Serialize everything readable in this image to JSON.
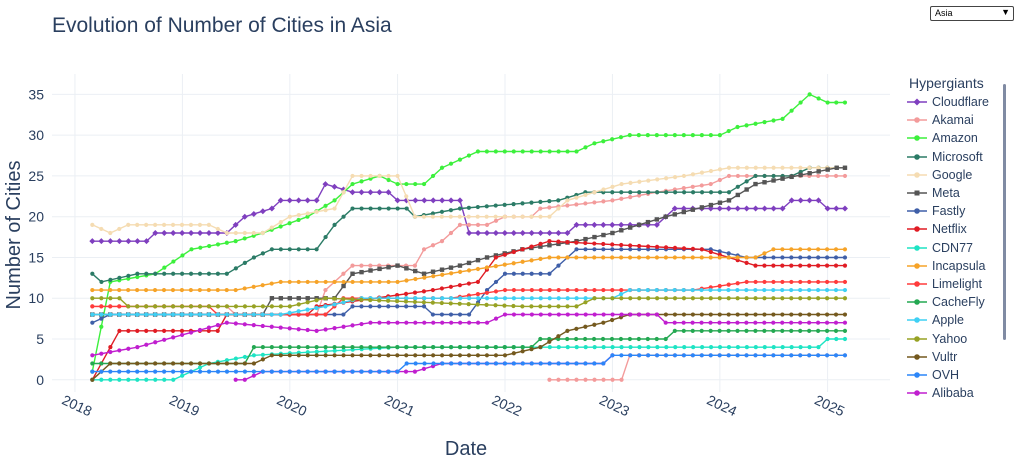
{
  "title": "Evolution of Number of Cities in Asia",
  "dropdown": {
    "selected": "Asia",
    "icon": "triangle-down-icon"
  },
  "legend_title": "Hypergiants",
  "chart_data": {
    "type": "line",
    "title": "Evolution of Number of Cities in Asia",
    "xlabel": "Date",
    "ylabel": "Number of Cities",
    "x_type": "date",
    "xlim": [
      "2017-10-15",
      "2025-08-01"
    ],
    "ylim": [
      -1.5,
      37.5
    ],
    "x_ticks": [
      "2018-01-01",
      "2019-01-01",
      "2020-01-01",
      "2021-01-01",
      "2022-01-01",
      "2023-01-01",
      "2024-01-01",
      "2025-01-01"
    ],
    "x_tick_labels": [
      "2018",
      "2019",
      "2020",
      "2021",
      "2022",
      "2023",
      "2024",
      "2025"
    ],
    "y_ticks": [
      0,
      5,
      10,
      15,
      20,
      25,
      30,
      35
    ],
    "grid": true,
    "legend_position": "right",
    "series": [
      {
        "name": "Cloudflare",
        "color": "#7f3fbf",
        "symbol": "diamond",
        "points": [
          [
            "2018-03-01",
            17
          ],
          [
            "2018-09-01",
            17
          ],
          [
            "2018-10-01",
            18
          ],
          [
            "2019-06-01",
            18
          ],
          [
            "2019-07-01",
            19
          ],
          [
            "2019-08-01",
            20
          ],
          [
            "2019-11-01",
            21
          ],
          [
            "2019-12-01",
            22
          ],
          [
            "2020-04-01",
            22
          ],
          [
            "2020-05-01",
            24
          ],
          [
            "2020-08-01",
            23
          ],
          [
            "2020-12-01",
            23
          ],
          [
            "2021-01-01",
            22
          ],
          [
            "2021-08-01",
            22
          ],
          [
            "2021-09-01",
            18
          ],
          [
            "2022-08-01",
            18
          ],
          [
            "2022-09-01",
            19
          ],
          [
            "2023-06-01",
            19
          ],
          [
            "2023-07-01",
            20
          ],
          [
            "2023-08-01",
            21
          ],
          [
            "2024-08-01",
            21
          ],
          [
            "2024-09-01",
            22
          ],
          [
            "2024-12-01",
            22
          ],
          [
            "2025-01-01",
            21
          ],
          [
            "2025-03-01",
            21
          ]
        ]
      },
      {
        "name": "Akamai",
        "color": "#f39b9b",
        "symbol": "circle",
        "points": [
          [
            "2018-03-01",
            9
          ],
          [
            "2019-06-01",
            9
          ],
          [
            "2019-07-01",
            8
          ],
          [
            "2020-04-01",
            8
          ],
          [
            "2020-05-01",
            11
          ],
          [
            "2020-07-01",
            13
          ],
          [
            "2020-08-01",
            14
          ],
          [
            "2021-03-01",
            14
          ],
          [
            "2021-04-01",
            16
          ],
          [
            "2021-06-01",
            17
          ],
          [
            "2021-08-01",
            19
          ],
          [
            "2021-11-01",
            19
          ],
          [
            "2022-01-01",
            20
          ],
          [
            "2022-04-01",
            20
          ],
          [
            "2022-05-01",
            21
          ],
          [
            "2023-01-01",
            22
          ],
          [
            "2023-06-01",
            23
          ],
          [
            "2023-12-01",
            24
          ],
          [
            "2024-02-01",
            25
          ],
          [
            "2025-03-01",
            25
          ]
        ]
      },
      {
        "name": "Amazon",
        "color": "#3cf03c",
        "symbol": "circle",
        "points": [
          [
            "2018-03-01",
            1
          ],
          [
            "2018-05-01",
            12
          ],
          [
            "2018-10-01",
            13
          ],
          [
            "2019-02-01",
            16
          ],
          [
            "2019-07-01",
            17
          ],
          [
            "2019-10-01",
            18
          ],
          [
            "2020-03-01",
            20
          ],
          [
            "2020-06-01",
            22
          ],
          [
            "2020-08-01",
            24
          ],
          [
            "2020-11-01",
            25
          ],
          [
            "2021-01-01",
            24
          ],
          [
            "2021-04-01",
            24
          ],
          [
            "2021-06-01",
            26
          ],
          [
            "2021-08-01",
            27
          ],
          [
            "2021-10-01",
            28
          ],
          [
            "2022-09-01",
            28
          ],
          [
            "2022-11-01",
            29
          ],
          [
            "2023-03-01",
            30
          ],
          [
            "2024-01-01",
            30
          ],
          [
            "2024-03-01",
            31
          ],
          [
            "2024-08-01",
            32
          ],
          [
            "2024-11-01",
            35
          ],
          [
            "2025-01-01",
            34
          ],
          [
            "2025-03-01",
            34
          ]
        ]
      },
      {
        "name": "Microsoft",
        "color": "#2b7b66",
        "symbol": "circle",
        "points": [
          [
            "2018-03-01",
            13
          ],
          [
            "2018-04-01",
            12
          ],
          [
            "2018-08-01",
            13
          ],
          [
            "2019-06-01",
            13
          ],
          [
            "2019-09-01",
            15
          ],
          [
            "2019-11-01",
            16
          ],
          [
            "2020-04-01",
            16
          ],
          [
            "2020-06-01",
            19
          ],
          [
            "2020-08-01",
            21
          ],
          [
            "2021-02-01",
            21
          ],
          [
            "2021-03-01",
            20
          ],
          [
            "2021-08-01",
            21
          ],
          [
            "2022-07-01",
            22
          ],
          [
            "2022-10-01",
            23
          ],
          [
            "2024-02-01",
            23
          ],
          [
            "2024-05-01",
            25
          ],
          [
            "2024-09-01",
            25
          ],
          [
            "2024-11-01",
            26
          ],
          [
            "2025-03-01",
            26
          ]
        ]
      },
      {
        "name": "Google",
        "color": "#f5dcb2",
        "symbol": "circle",
        "points": [
          [
            "2018-03-01",
            19
          ],
          [
            "2018-05-01",
            18
          ],
          [
            "2018-07-01",
            19
          ],
          [
            "2019-04-01",
            19
          ],
          [
            "2019-06-01",
            18
          ],
          [
            "2019-10-01",
            18
          ],
          [
            "2020-01-01",
            20
          ],
          [
            "2020-06-01",
            21
          ],
          [
            "2020-08-01",
            25
          ],
          [
            "2021-01-01",
            25
          ],
          [
            "2021-03-01",
            20
          ],
          [
            "2022-04-01",
            20
          ],
          [
            "2022-06-01",
            20
          ],
          [
            "2022-08-01",
            22
          ],
          [
            "2023-02-01",
            24
          ],
          [
            "2023-09-01",
            25
          ],
          [
            "2024-02-01",
            26
          ],
          [
            "2025-03-01",
            26
          ]
        ]
      },
      {
        "name": "Meta",
        "color": "#555555",
        "symbol": "square",
        "points": [
          [
            "2018-03-01",
            8
          ],
          [
            "2019-10-01",
            8
          ],
          [
            "2019-11-01",
            10
          ],
          [
            "2020-06-01",
            10
          ],
          [
            "2020-08-01",
            13
          ],
          [
            "2021-01-01",
            14
          ],
          [
            "2021-04-01",
            13
          ],
          [
            "2021-08-01",
            14
          ],
          [
            "2021-11-01",
            15
          ],
          [
            "2022-03-01",
            16
          ],
          [
            "2022-09-01",
            17
          ],
          [
            "2023-01-01",
            18
          ],
          [
            "2023-07-01",
            20
          ],
          [
            "2024-02-01",
            22
          ],
          [
            "2024-05-01",
            24
          ],
          [
            "2025-02-01",
            26
          ],
          [
            "2025-03-01",
            26
          ]
        ]
      },
      {
        "name": "Fastly",
        "color": "#3f5fa8",
        "symbol": "circle",
        "points": [
          [
            "2018-03-01",
            7
          ],
          [
            "2018-05-01",
            8
          ],
          [
            "2020-07-01",
            8
          ],
          [
            "2020-08-01",
            9
          ],
          [
            "2021-04-01",
            9
          ],
          [
            "2021-05-01",
            8
          ],
          [
            "2021-09-01",
            8
          ],
          [
            "2021-11-01",
            11
          ],
          [
            "2022-01-01",
            13
          ],
          [
            "2022-06-01",
            13
          ],
          [
            "2022-09-01",
            16
          ],
          [
            "2023-12-01",
            16
          ],
          [
            "2024-04-01",
            15
          ],
          [
            "2025-03-01",
            15
          ]
        ]
      },
      {
        "name": "Netflix",
        "color": "#e01c24",
        "symbol": "circle",
        "points": [
          [
            "2018-03-01",
            0
          ],
          [
            "2018-06-01",
            6
          ],
          [
            "2019-05-01",
            6
          ],
          [
            "2019-06-01",
            8
          ],
          [
            "2020-03-01",
            8
          ],
          [
            "2020-04-01",
            9
          ],
          [
            "2021-05-01",
            11
          ],
          [
            "2021-10-01",
            12
          ],
          [
            "2021-12-01",
            15
          ],
          [
            "2022-06-01",
            17
          ],
          [
            "2023-11-01",
            16
          ],
          [
            "2024-05-01",
            14
          ],
          [
            "2025-03-01",
            14
          ]
        ]
      },
      {
        "name": "CDN77",
        "color": "#1ee4c4",
        "symbol": "circle",
        "points": [
          [
            "2018-03-01",
            0
          ],
          [
            "2018-12-01",
            0
          ],
          [
            "2019-04-01",
            2
          ],
          [
            "2019-09-01",
            3
          ],
          [
            "2021-01-01",
            4
          ],
          [
            "2022-01-01",
            4
          ],
          [
            "2023-02-01",
            4
          ],
          [
            "2024-12-01",
            4
          ],
          [
            "2025-01-01",
            5
          ],
          [
            "2025-03-01",
            5
          ]
        ]
      },
      {
        "name": "Incapsula",
        "color": "#f6a328",
        "symbol": "circle",
        "points": [
          [
            "2018-03-01",
            11
          ],
          [
            "2019-07-01",
            11
          ],
          [
            "2019-12-01",
            12
          ],
          [
            "2021-01-01",
            12
          ],
          [
            "2022-06-01",
            15
          ],
          [
            "2024-05-01",
            15
          ],
          [
            "2024-07-01",
            16
          ],
          [
            "2025-03-01",
            16
          ]
        ]
      },
      {
        "name": "Limelight",
        "color": "#ff3b3b",
        "symbol": "circle",
        "points": [
          [
            "2018-03-01",
            9
          ],
          [
            "2019-04-01",
            9
          ],
          [
            "2019-05-01",
            8
          ],
          [
            "2020-05-01",
            8
          ],
          [
            "2020-07-01",
            10
          ],
          [
            "2021-07-01",
            10
          ],
          [
            "2022-01-01",
            11
          ],
          [
            "2023-10-01",
            11
          ],
          [
            "2024-04-01",
            12
          ],
          [
            "2025-03-01",
            12
          ]
        ]
      },
      {
        "name": "CacheFly",
        "color": "#24a852",
        "symbol": "circle",
        "points": [
          [
            "2018-03-01",
            2
          ],
          [
            "2019-08-01",
            2
          ],
          [
            "2019-09-01",
            4
          ],
          [
            "2021-06-01",
            4
          ],
          [
            "2022-04-01",
            4
          ],
          [
            "2022-05-01",
            5
          ],
          [
            "2023-07-01",
            5
          ],
          [
            "2023-08-01",
            6
          ],
          [
            "2025-03-01",
            6
          ]
        ]
      },
      {
        "name": "Apple",
        "color": "#3fd0f4",
        "symbol": "circle",
        "points": [
          [
            "2018-03-01",
            8
          ],
          [
            "2019-12-01",
            8
          ],
          [
            "2020-05-01",
            9
          ],
          [
            "2020-09-01",
            10
          ],
          [
            "2023-01-01",
            10
          ],
          [
            "2023-03-01",
            11
          ],
          [
            "2025-03-01",
            11
          ]
        ]
      },
      {
        "name": "Yahoo",
        "color": "#97a224",
        "symbol": "circle",
        "points": [
          [
            "2018-03-01",
            10
          ],
          [
            "2018-06-01",
            10
          ],
          [
            "2018-07-01",
            9
          ],
          [
            "2020-01-01",
            9
          ],
          [
            "2020-05-01",
            10
          ],
          [
            "2022-03-01",
            9
          ],
          [
            "2022-09-01",
            9
          ],
          [
            "2022-11-01",
            10
          ],
          [
            "2025-03-01",
            10
          ]
        ]
      },
      {
        "name": "Vultr",
        "color": "#74591e",
        "symbol": "circle",
        "points": [
          [
            "2018-03-01",
            0
          ],
          [
            "2018-05-01",
            2
          ],
          [
            "2019-09-01",
            2
          ],
          [
            "2019-11-01",
            3
          ],
          [
            "2021-10-01",
            3
          ],
          [
            "2022-01-01",
            3
          ],
          [
            "2022-05-01",
            4
          ],
          [
            "2022-08-01",
            6
          ],
          [
            "2022-12-01",
            7
          ],
          [
            "2023-03-01",
            8
          ],
          [
            "2023-09-01",
            8
          ],
          [
            "2025-03-01",
            8
          ]
        ]
      },
      {
        "name": "OVH",
        "color": "#2c86f8",
        "symbol": "circle",
        "points": [
          [
            "2018-03-01",
            1
          ],
          [
            "2021-01-01",
            1
          ],
          [
            "2021-02-01",
            2
          ],
          [
            "2022-12-01",
            2
          ],
          [
            "2023-01-01",
            3
          ],
          [
            "2025-03-01",
            3
          ]
        ]
      },
      {
        "name": "Alibaba",
        "color": "#c01ecf",
        "symbol": "circle",
        "points": [
          [
            "2018-03-01",
            3
          ],
          [
            "2018-08-01",
            4
          ],
          [
            "2019-06-01",
            7
          ],
          [
            "2020-04-01",
            6
          ],
          [
            "2020-10-01",
            7
          ],
          [
            "2021-11-01",
            7
          ],
          [
            "2022-01-01",
            8
          ],
          [
            "2023-02-01",
            8
          ],
          [
            "2023-06-01",
            8
          ],
          [
            "2023-07-01",
            7
          ],
          [
            "2025-03-01",
            7
          ]
        ]
      }
    ],
    "extra_segments": [
      {
        "series": "Alibaba",
        "color": "#c01ecf",
        "points": [
          [
            "2019-07-01",
            0
          ],
          [
            "2019-08-01",
            0
          ],
          [
            "2019-10-01",
            1
          ],
          [
            "2021-03-01",
            1
          ],
          [
            "2021-06-01",
            2
          ],
          [
            "2022-12-01",
            2
          ],
          [
            "2023-01-01",
            3
          ]
        ]
      },
      {
        "series": "Akamai",
        "color": "#f39b9b",
        "points": [
          [
            "2022-06-01",
            0
          ],
          [
            "2023-02-01",
            0
          ],
          [
            "2023-03-01",
            3
          ],
          [
            "2025-03-01",
            3
          ]
        ]
      }
    ]
  }
}
